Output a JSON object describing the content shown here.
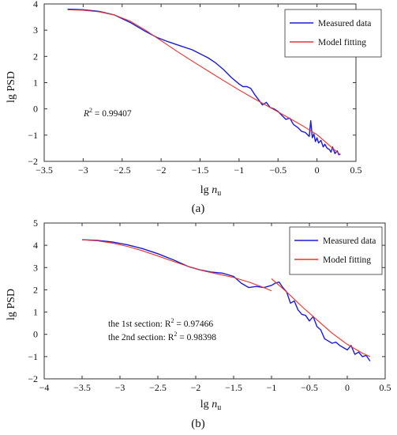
{
  "chart_data": [
    {
      "type": "line",
      "panel_label": "(a)",
      "xlabel_base": "lg ",
      "xlabel_var": "n",
      "xlabel_sub": "u",
      "ylabel": "lg PSD",
      "xlim": [
        -3.5,
        0.5
      ],
      "ylim": [
        -2,
        4
      ],
      "xticks": [
        -3.5,
        -3,
        -2.5,
        -2,
        -1.5,
        -1,
        -0.5,
        0,
        0.5
      ],
      "yticks": [
        -2,
        -1,
        0,
        1,
        2,
        3,
        4
      ],
      "grid": false,
      "legend_position": "top-right",
      "annotations": [
        {
          "pre": "R",
          "sup": "2",
          "post": " = 0.99407"
        }
      ],
      "series": [
        {
          "name": "Measured data",
          "color": "#1a1adb",
          "x": [
            -3.2,
            -3.0,
            -2.8,
            -2.6,
            -2.4,
            -2.2,
            -2.05,
            -1.9,
            -1.75,
            -1.6,
            -1.5,
            -1.4,
            -1.3,
            -1.2,
            -1.1,
            -1.0,
            -0.95,
            -0.9,
            -0.85,
            -0.8,
            -0.75,
            -0.7,
            -0.65,
            -0.6,
            -0.55,
            -0.5,
            -0.45,
            -0.4,
            -0.35,
            -0.3,
            -0.25,
            -0.2,
            -0.15,
            -0.1,
            -0.08,
            -0.06,
            -0.04,
            -0.02,
            0.0,
            0.02,
            0.05,
            0.08,
            0.1,
            0.13,
            0.16,
            0.18,
            0.2,
            0.23,
            0.26,
            0.28,
            0.3
          ],
          "y": [
            3.8,
            3.78,
            3.72,
            3.58,
            3.3,
            2.95,
            2.72,
            2.55,
            2.4,
            2.25,
            2.1,
            1.95,
            1.75,
            1.5,
            1.2,
            0.95,
            0.85,
            0.85,
            0.78,
            0.55,
            0.35,
            0.15,
            0.25,
            0.05,
            0.0,
            -0.1,
            -0.25,
            -0.4,
            -0.35,
            -0.6,
            -0.7,
            -0.85,
            -0.9,
            -1.05,
            -0.45,
            -1.1,
            -0.95,
            -1.25,
            -1.1,
            -1.3,
            -1.2,
            -1.45,
            -1.35,
            -1.5,
            -1.55,
            -1.65,
            -1.45,
            -1.7,
            -1.6,
            -1.75,
            -1.72
          ]
        },
        {
          "name": "Model fitting",
          "color": "#e8332a",
          "x": [
            -3.2,
            -3.0,
            -2.8,
            -2.6,
            -2.4,
            -2.2,
            -2.0,
            -1.8,
            -1.6,
            -1.4,
            -1.2,
            -1.0,
            -0.8,
            -0.6,
            -0.4,
            -0.2,
            0.0,
            0.2,
            0.3
          ],
          "y": [
            3.78,
            3.76,
            3.7,
            3.58,
            3.35,
            3.0,
            2.6,
            2.2,
            1.82,
            1.45,
            1.08,
            0.72,
            0.38,
            0.05,
            -0.28,
            -0.62,
            -0.98,
            -1.5,
            -1.75
          ]
        }
      ]
    },
    {
      "type": "line",
      "panel_label": "(b)",
      "xlabel_base": "lg ",
      "xlabel_var": "n",
      "xlabel_sub": "u",
      "ylabel": "lg PSD",
      "xlim": [
        -4,
        0.5
      ],
      "ylim": [
        -2,
        5
      ],
      "xticks": [
        -4,
        -3.5,
        -3,
        -2.5,
        -2,
        -1.5,
        -1,
        -0.5,
        0,
        0.5
      ],
      "yticks": [
        -2,
        -1,
        0,
        1,
        2,
        3,
        4,
        5
      ],
      "grid": false,
      "legend_position": "top-right",
      "annotations": [
        {
          "pre": "the 1st section: R",
          "sup": "2",
          "post": " = 0.97466"
        },
        {
          "pre": "the 2nd section: R",
          "sup": "2",
          "post": " = 0.98398"
        }
      ],
      "series": [
        {
          "name": "Measured data",
          "color": "#1a1adb",
          "x": [
            -3.5,
            -3.3,
            -3.1,
            -2.9,
            -2.7,
            -2.5,
            -2.3,
            -2.1,
            -1.95,
            -1.8,
            -1.65,
            -1.5,
            -1.4,
            -1.3,
            -1.2,
            -1.1,
            -1.0,
            -0.95,
            -0.9,
            -0.85,
            -0.8,
            -0.75,
            -0.7,
            -0.65,
            -0.6,
            -0.55,
            -0.5,
            -0.45,
            -0.4,
            -0.35,
            -0.3,
            -0.25,
            -0.2,
            -0.15,
            -0.1,
            -0.05,
            0.0,
            0.05,
            0.1,
            0.15,
            0.2,
            0.25,
            0.3
          ],
          "y": [
            4.25,
            4.22,
            4.15,
            4.02,
            3.85,
            3.62,
            3.35,
            3.05,
            2.9,
            2.8,
            2.75,
            2.6,
            2.3,
            2.1,
            2.15,
            2.1,
            2.2,
            2.3,
            2.35,
            2.1,
            1.9,
            1.4,
            1.5,
            1.1,
            0.9,
            0.85,
            0.6,
            0.8,
            0.35,
            0.2,
            -0.2,
            -0.3,
            -0.4,
            -0.35,
            -0.5,
            -0.6,
            -0.7,
            -0.5,
            -0.9,
            -0.8,
            -1.0,
            -0.95,
            -1.2
          ]
        },
        {
          "name": "Model fitting",
          "color": "#e8332a",
          "segments": [
            {
              "x": [
                -3.5,
                -3.3,
                -3.1,
                -2.9,
                -2.7,
                -2.5,
                -2.3,
                -2.1,
                -1.9,
                -1.7,
                -1.5,
                -1.3,
                -1.1,
                -1.0
              ],
              "y": [
                4.25,
                4.2,
                4.1,
                3.95,
                3.75,
                3.52,
                3.28,
                3.05,
                2.85,
                2.7,
                2.55,
                2.35,
                2.1,
                1.95
              ]
            },
            {
              "x": [
                -1.0,
                -0.8,
                -0.6,
                -0.4,
                -0.2,
                0.0,
                0.2,
                0.3
              ],
              "y": [
                2.5,
                1.9,
                1.25,
                0.65,
                0.05,
                -0.45,
                -0.85,
                -1.0
              ]
            }
          ]
        }
      ]
    }
  ]
}
